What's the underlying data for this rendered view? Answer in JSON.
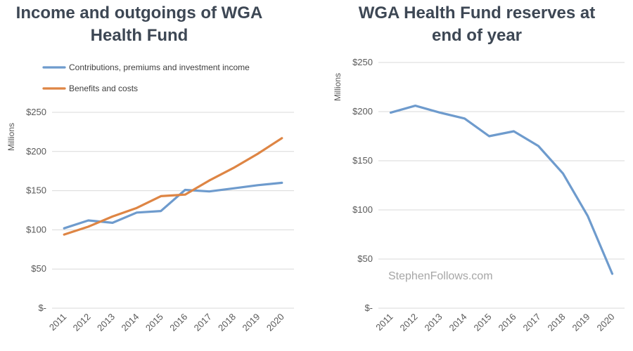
{
  "chart_data": [
    {
      "type": "line",
      "title_lines": [
        "Income and outgoings of WGA",
        "Health Fund"
      ],
      "ylabel": "Millions",
      "categories": [
        "2011",
        "2012",
        "2013",
        "2014",
        "2015",
        "2016",
        "2017",
        "2018",
        "2019",
        "2020"
      ],
      "y_ticks": [
        "$-",
        "$50",
        "$100",
        "$150",
        "$200",
        "$250"
      ],
      "ylim": [
        0,
        250
      ],
      "grid": true,
      "legend_position": "top-left",
      "series": [
        {
          "name": "Contributions, premiums and investment income",
          "color": "#6e9bcd",
          "values": [
            102,
            112,
            109,
            122,
            124,
            151,
            149,
            153,
            157,
            160
          ]
        },
        {
          "name": "Benefits and costs",
          "color": "#de8544",
          "values": [
            94,
            104,
            117,
            128,
            143,
            145,
            163,
            179,
            197,
            217
          ]
        }
      ]
    },
    {
      "type": "line",
      "title_lines": [
        "WGA Health Fund reserves at",
        "end of year"
      ],
      "ylabel": "Millions",
      "categories": [
        "2011",
        "2012",
        "2013",
        "2014",
        "2015",
        "2016",
        "2017",
        "2018",
        "2019",
        "2020"
      ],
      "y_ticks": [
        "$-",
        "$50",
        "$100",
        "$150",
        "$200",
        "$250"
      ],
      "ylim": [
        0,
        250
      ],
      "grid": true,
      "series": [
        {
          "color": "#6e9bcd",
          "values": [
            199,
            206,
            199,
            193,
            175,
            180,
            165,
            137,
            94,
            35
          ]
        }
      ],
      "watermark": "StephenFollows.com"
    }
  ]
}
